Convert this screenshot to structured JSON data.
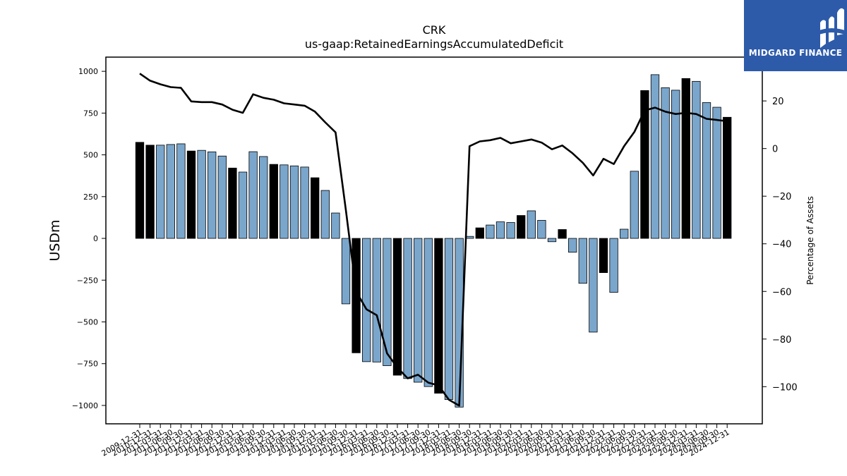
{
  "brand": {
    "name": "MIDGARD FINANCE",
    "bg_color": "#2d5baa"
  },
  "chart_data": {
    "type": "bar",
    "title": "CRK",
    "subtitle": "us-gaap:RetainedEarningsAccumulatedDeficit",
    "xlabel": "",
    "ylabel": "USDm",
    "y2label": "Percentage of Assets",
    "ylim": [
      -1110,
      1085
    ],
    "y2lim": [
      -115.6,
      38.4
    ],
    "yticks": [
      1000,
      750,
      500,
      250,
      0,
      -250,
      -500,
      -750,
      -1000
    ],
    "y2ticks": [
      20,
      0,
      -20,
      -40,
      -60,
      -80,
      -100
    ],
    "colors": {
      "fy_bar": "#000000",
      "quarter_bar": "#7aa6cc",
      "line": "#000000"
    },
    "categories": [
      "2009-12-31",
      "2010-12-31",
      "2011-03-31",
      "2011-06-30",
      "2011-09-30",
      "2011-12-31",
      "2012-03-31",
      "2012-06-30",
      "2012-09-30",
      "2012-12-31",
      "2013-03-31",
      "2013-06-30",
      "2013-09-30",
      "2013-12-31",
      "2014-03-31",
      "2014-06-30",
      "2014-09-30",
      "2014-12-31",
      "2015-03-31",
      "2015-06-30",
      "2015-09-30",
      "2015-12-31",
      "2016-03-31",
      "2016-06-30",
      "2016-09-30",
      "2016-12-31",
      "2017-03-31",
      "2017-06-30",
      "2017-09-30",
      "2017-12-31",
      "2018-03-31",
      "2018-06-30",
      "2018-09-30",
      "2018-12-31",
      "2019-03-31",
      "2019-06-30",
      "2019-09-30",
      "2019-12-31",
      "2020-03-31",
      "2020-06-30",
      "2020-09-30",
      "2020-12-31",
      "2021-03-31",
      "2021-06-30",
      "2021-09-30",
      "2021-12-31",
      "2022-03-31",
      "2022-06-30",
      "2022-09-30",
      "2022-12-31",
      "2023-03-31",
      "2023-06-30",
      "2023-09-30",
      "2023-12-31",
      "2024-03-31",
      "2024-06-30",
      "2024-09-30",
      "2024-12-31"
    ],
    "tick_labels": [
      "2009-12-31",
      "2010-12-31",
      "2011-03-31",
      "2011-06-30",
      "2011-09-30",
      "2011-12-31",
      "2012-03-31",
      "2012-06-30",
      "2012-09-30",
      "2012-12-31",
      "2013-03-31",
      "2013-06-30",
      "2013-09-30",
      "2013-12-31",
      "2014-03-31",
      "2014-06-30",
      "2014-09-30",
      "2014-12-31",
      "2015-03-31",
      "2015-06-30",
      "2015-09-30",
      "2015-12-31",
      "2016-03-31",
      "2016-06-30",
      "2016-09-30",
      "2016-12-31",
      "2017-03-31",
      "2017-06-30",
      "2017-09-30",
      "2017-12-31",
      "2018-03-31",
      "2018-06-30",
      "2018-09-30",
      "2018-12-31",
      "2019-03-31",
      "2019-06-30",
      "2019-09-30",
      "2019-12-31",
      "2020-03-31",
      "2020-06-30",
      "2020-09-30",
      "2020-12-31",
      "2021-03-31",
      "2021-06-30",
      "2021-09-30",
      "2021-12-31",
      "2022-03-31",
      "2022-06-30",
      "2022-09-30",
      "2022-12-31",
      "2023-03-31",
      "2023-06-30",
      "2023-09-30",
      "2023-12-31",
      "2024-03-31",
      "2024-06-30",
      "2024-09-30",
      "2024-12-31"
    ],
    "series": [
      {
        "type": "bar",
        "values": [
          575,
          558,
          558,
          562,
          566,
          523,
          527,
          518,
          493,
          421,
          397,
          519,
          490,
          443,
          440,
          434,
          427,
          363,
          287,
          152,
          -392,
          -685,
          -738,
          -740,
          -762,
          -819,
          -839,
          -861,
          -887,
          -927,
          -965,
          -1010,
          12,
          63,
          80,
          99,
          95,
          137,
          165,
          108,
          -20,
          53,
          -83,
          -269,
          -561,
          -205,
          -323,
          55,
          402,
          885,
          980,
          902,
          887,
          957,
          940,
          813,
          785,
          725
        ],
        "fy": [
          true,
          true,
          false,
          false,
          false,
          true,
          false,
          false,
          false,
          true,
          false,
          false,
          false,
          true,
          false,
          false,
          false,
          true,
          false,
          false,
          false,
          true,
          false,
          false,
          false,
          true,
          false,
          false,
          false,
          true,
          false,
          false,
          false,
          true,
          false,
          false,
          false,
          true,
          false,
          false,
          false,
          true,
          false,
          false,
          false,
          true,
          false,
          false,
          false,
          true,
          false,
          false,
          false,
          true,
          false,
          false,
          false,
          true
        ]
      },
      {
        "type": "line",
        "axis": "right",
        "values": [
          31.5,
          28.5,
          27,
          25.8,
          25.5,
          19.8,
          19.5,
          19.5,
          18.5,
          16.3,
          15,
          22.8,
          21.3,
          20.5,
          19,
          18.5,
          18,
          15.5,
          11,
          6.8,
          -25.8,
          -60,
          -67.5,
          -70,
          -86,
          -92,
          -96.5,
          -95,
          -98.3,
          -99.5,
          -105.5,
          -108,
          1,
          3,
          3.5,
          4.5,
          2.2,
          3,
          3.8,
          2.5,
          -0.3,
          1.3,
          -2,
          -6,
          -11.3,
          -4.3,
          -6.5,
          1,
          7,
          16,
          17.2,
          15.5,
          14.5,
          15,
          14.5,
          12.5,
          12,
          11.5
        ]
      }
    ]
  }
}
